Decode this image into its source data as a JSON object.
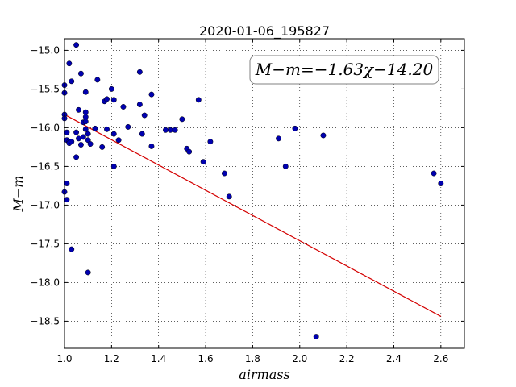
{
  "chart_data": {
    "type": "scatter",
    "title": "2020-01-06_195827",
    "xlabel": "airmass",
    "ylabel": "M−m",
    "xlim": [
      1.0,
      2.7
    ],
    "ylim": [
      -18.85,
      -14.85
    ],
    "xticks": [
      "1.0",
      "1.2",
      "1.4",
      "1.6",
      "1.8",
      "2.0",
      "2.2",
      "2.4",
      "2.6"
    ],
    "yticks": [
      "−15.0",
      "−15.5",
      "−16.0",
      "−16.5",
      "−17.0",
      "−17.5",
      "−18.0",
      "−18.5"
    ],
    "grid": true,
    "annotation": "M−m=−1.63χ−14.20",
    "fit": {
      "slope": -1.63,
      "intercept": -14.2,
      "x_range": [
        1.0,
        2.6
      ],
      "color": "#d40000"
    },
    "point_color": "#0000b0",
    "points": [
      [
        1.0,
        -15.45
      ],
      [
        1.0,
        -15.55
      ],
      [
        1.0,
        -15.83
      ],
      [
        1.0,
        -15.88
      ],
      [
        1.0,
        -16.83
      ],
      [
        1.01,
        -16.93
      ],
      [
        1.01,
        -16.06
      ],
      [
        1.01,
        -16.16
      ],
      [
        1.01,
        -16.72
      ],
      [
        1.02,
        -16.18
      ],
      [
        1.02,
        -16.2
      ],
      [
        1.02,
        -15.17
      ],
      [
        1.03,
        -15.4
      ],
      [
        1.03,
        -16.18
      ],
      [
        1.03,
        -17.57
      ],
      [
        1.05,
        -14.93
      ],
      [
        1.05,
        -16.06
      ],
      [
        1.05,
        -16.38
      ],
      [
        1.06,
        -16.14
      ],
      [
        1.06,
        -15.77
      ],
      [
        1.07,
        -15.3
      ],
      [
        1.07,
        -16.22
      ],
      [
        1.08,
        -15.93
      ],
      [
        1.08,
        -16.12
      ],
      [
        1.09,
        -15.8
      ],
      [
        1.09,
        -15.86
      ],
      [
        1.09,
        -15.92
      ],
      [
        1.09,
        -16.02
      ],
      [
        1.09,
        -15.54
      ],
      [
        1.1,
        -16.08
      ],
      [
        1.1,
        -16.16
      ],
      [
        1.1,
        -17.87
      ],
      [
        1.11,
        -16.21
      ],
      [
        1.13,
        -16.01
      ],
      [
        1.14,
        -15.38
      ],
      [
        1.16,
        -16.25
      ],
      [
        1.17,
        -15.66
      ],
      [
        1.18,
        -15.63
      ],
      [
        1.18,
        -16.02
      ],
      [
        1.2,
        -15.5
      ],
      [
        1.21,
        -16.08
      ],
      [
        1.21,
        -16.5
      ],
      [
        1.21,
        -15.64
      ],
      [
        1.23,
        -16.16
      ],
      [
        1.25,
        -15.73
      ],
      [
        1.27,
        -15.99
      ],
      [
        1.32,
        -15.28
      ],
      [
        1.32,
        -15.7
      ],
      [
        1.33,
        -16.08
      ],
      [
        1.34,
        -15.84
      ],
      [
        1.37,
        -16.24
      ],
      [
        1.37,
        -15.57
      ],
      [
        1.43,
        -16.03
      ],
      [
        1.45,
        -16.03
      ],
      [
        1.47,
        -16.03
      ],
      [
        1.5,
        -15.89
      ],
      [
        1.52,
        -16.27
      ],
      [
        1.53,
        -16.31
      ],
      [
        1.57,
        -15.64
      ],
      [
        1.59,
        -16.44
      ],
      [
        1.62,
        -16.18
      ],
      [
        1.68,
        -16.59
      ],
      [
        1.7,
        -16.89
      ],
      [
        1.91,
        -16.14
      ],
      [
        1.94,
        -16.5
      ],
      [
        1.98,
        -16.01
      ],
      [
        2.07,
        -18.7
      ],
      [
        2.1,
        -16.1
      ],
      [
        2.57,
        -16.59
      ],
      [
        2.6,
        -16.72
      ]
    ]
  }
}
